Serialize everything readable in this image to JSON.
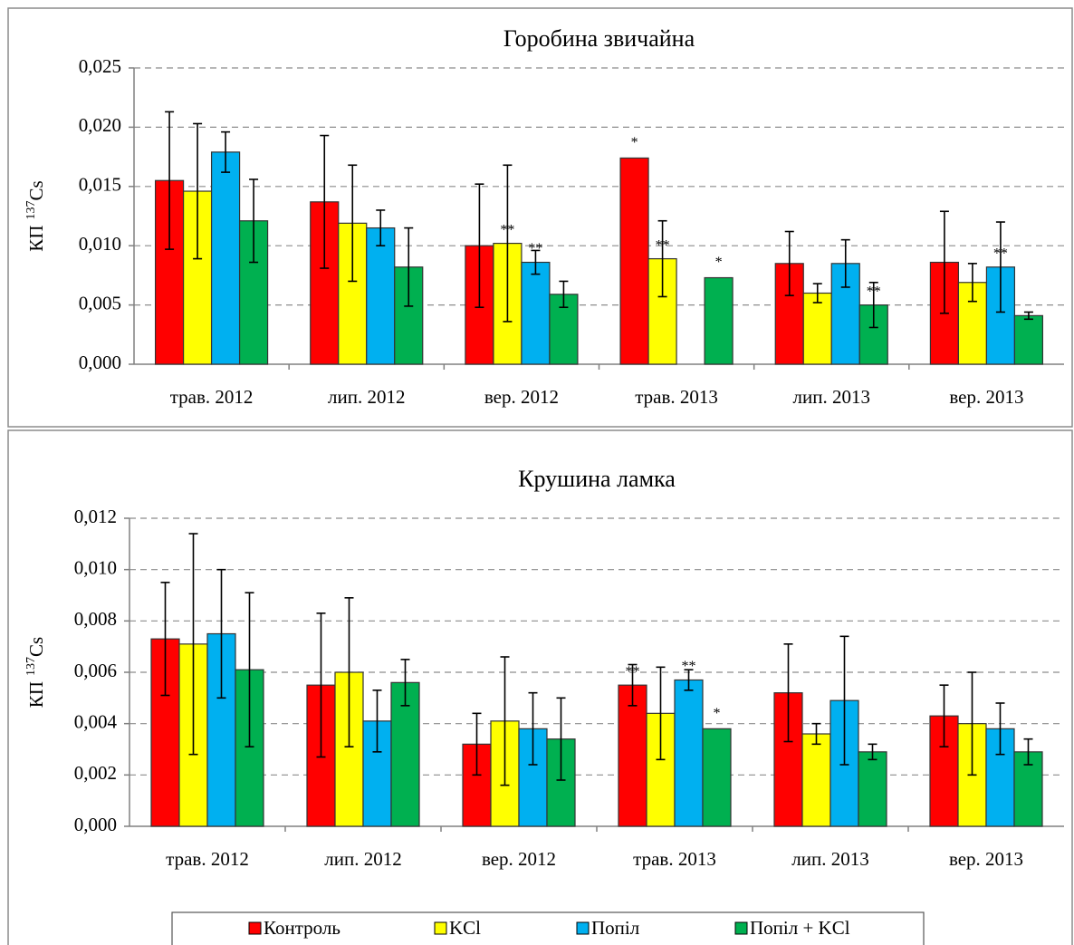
{
  "chart_data": [
    {
      "type": "bar",
      "title": "Горобина звичайна",
      "y_label": {
        "text": "КП",
        "superscript": "137",
        "element": "Cs"
      },
      "categories": [
        "трав. 2012",
        "лип. 2012",
        "вер. 2012",
        "трав. 2013",
        "лип. 2013",
        "вер. 2013"
      ],
      "series": [
        {
          "name": "Контроль",
          "color": "#ff0000",
          "values": [
            0.0155,
            0.0137,
            0.01,
            0.0174,
            0.0085,
            0.0086
          ],
          "errors": [
            0.0058,
            0.0056,
            0.0052,
            null,
            0.0027,
            0.0043
          ],
          "marks": [
            null,
            null,
            null,
            "*",
            null,
            null
          ]
        },
        {
          "name": "KCl",
          "color": "#ffff00",
          "values": [
            0.0146,
            0.0119,
            0.0102,
            0.0089,
            0.006,
            0.0069
          ],
          "errors": [
            0.0057,
            0.0049,
            0.0066,
            0.0032,
            0.0008,
            0.0016
          ],
          "marks": [
            null,
            null,
            "**",
            "**",
            null,
            null
          ]
        },
        {
          "name": "Попіл",
          "color": "#00b0f0",
          "values": [
            0.0179,
            0.0115,
            0.0086,
            null,
            0.0085,
            0.0082
          ],
          "errors": [
            0.0017,
            0.0015,
            0.001,
            null,
            0.002,
            0.0038
          ],
          "marks": [
            null,
            null,
            "**",
            null,
            null,
            "**"
          ]
        },
        {
          "name": "Попіл + KCl",
          "color": "#00b050",
          "values": [
            0.0121,
            0.0082,
            0.0059,
            0.0073,
            0.005,
            0.0041
          ],
          "errors": [
            0.0035,
            0.0033,
            0.0011,
            null,
            0.0019,
            0.0003
          ],
          "marks": [
            null,
            null,
            null,
            "*",
            "**",
            null
          ]
        }
      ],
      "ylim": [
        0,
        0.025
      ],
      "yticks": [
        {
          "value": 0,
          "label": "0,000"
        },
        {
          "value": 0.005,
          "label": "0,005"
        },
        {
          "value": 0.01,
          "label": "0,010"
        },
        {
          "value": 0.015,
          "label": "0,015"
        },
        {
          "value": 0.02,
          "label": "0,020"
        },
        {
          "value": 0.025,
          "label": "0,025"
        }
      ],
      "grid": true
    },
    {
      "type": "bar",
      "title": "Крушина ламка",
      "y_label": {
        "text": "КП",
        "superscript": "137",
        "element": "Cs"
      },
      "categories": [
        "трав. 2012",
        "лип. 2012",
        "вер. 2012",
        "трав. 2013",
        "лип. 2013",
        "вер. 2013"
      ],
      "series": [
        {
          "name": "Контроль",
          "color": "#ff0000",
          "values": [
            0.0073,
            0.0055,
            0.0032,
            0.0055,
            0.0052,
            0.0043
          ],
          "errors": [
            0.0022,
            0.0028,
            0.0012,
            0.0008,
            0.0019,
            0.0012
          ],
          "marks": [
            null,
            null,
            null,
            "**",
            null,
            null
          ]
        },
        {
          "name": "KCl",
          "color": "#ffff00",
          "values": [
            0.0071,
            0.006,
            0.0041,
            0.0044,
            0.0036,
            0.004
          ],
          "errors": [
            0.0043,
            0.0029,
            0.0025,
            0.0018,
            0.0004,
            0.002
          ],
          "marks": [
            null,
            null,
            null,
            null,
            null,
            null
          ]
        },
        {
          "name": "Попіл",
          "color": "#00b0f0",
          "values": [
            0.0075,
            0.0041,
            0.0038,
            0.0057,
            0.0049,
            0.0038
          ],
          "errors": [
            0.0025,
            0.0012,
            0.0014,
            0.0004,
            0.0025,
            0.001
          ],
          "marks": [
            null,
            null,
            null,
            "**",
            null,
            null
          ]
        },
        {
          "name": "Попіл + KCl",
          "color": "#00b050",
          "values": [
            0.0061,
            0.0056,
            0.0034,
            0.0038,
            0.0029,
            0.0029
          ],
          "errors": [
            0.003,
            0.0009,
            0.0016,
            null,
            0.0003,
            0.0005
          ],
          "marks": [
            null,
            null,
            null,
            "*",
            null,
            null
          ]
        }
      ],
      "ylim": [
        0,
        0.012
      ],
      "yticks": [
        {
          "value": 0,
          "label": "0,000"
        },
        {
          "value": 0.002,
          "label": "0,002"
        },
        {
          "value": 0.004,
          "label": "0,004"
        },
        {
          "value": 0.006,
          "label": "0,006"
        },
        {
          "value": 0.008,
          "label": "0,008"
        },
        {
          "value": 0.01,
          "label": "0,010"
        },
        {
          "value": 0.012,
          "label": "0,012"
        }
      ],
      "grid": true,
      "legend": "bottom"
    }
  ]
}
